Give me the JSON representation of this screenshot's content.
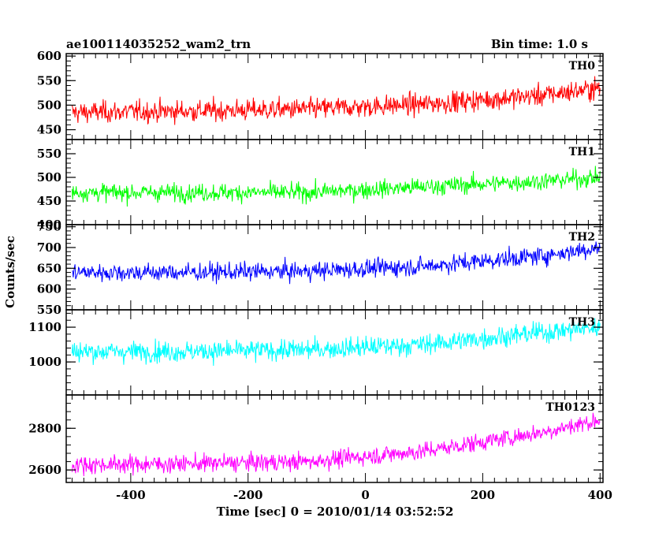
{
  "chart_data": {
    "type": "line",
    "title_left": "ae100114035252_wam2_trn",
    "title_right": "Bin time: 1.0 s",
    "xlabel": "Time [sec] 0 = 2010/01/14 03:52:52",
    "ylabel": "Counts/sec",
    "xlim": [
      -510,
      405
    ],
    "x_ticks": [
      -400,
      -200,
      0,
      200,
      400
    ],
    "x_range": [
      -500,
      400
    ],
    "bin_time": 1.0,
    "panels": [
      {
        "name": "TH0",
        "color": "#ff0000",
        "ylim": [
          430,
          605
        ],
        "y_ticks": [
          450,
          500,
          550,
          600
        ],
        "trend": [
          [
            -500,
            485
          ],
          [
            -300,
            488
          ],
          [
            -100,
            492
          ],
          [
            100,
            502
          ],
          [
            300,
            520
          ],
          [
            400,
            535
          ]
        ],
        "noise": 28
      },
      {
        "name": "TH1",
        "color": "#00ff00",
        "ylim": [
          400,
          580
        ],
        "y_ticks": [
          400,
          450,
          500,
          550
        ],
        "trend": [
          [
            -500,
            468
          ],
          [
            -300,
            468
          ],
          [
            -100,
            468
          ],
          [
            100,
            480
          ],
          [
            300,
            492
          ],
          [
            400,
            500
          ]
        ],
        "noise": 24
      },
      {
        "name": "TH2",
        "color": "#0000ff",
        "ylim": [
          550,
          755
        ],
        "y_ticks": [
          550,
          600,
          650,
          700,
          750
        ],
        "trend": [
          [
            -500,
            640
          ],
          [
            -300,
            640
          ],
          [
            -100,
            643
          ],
          [
            100,
            655
          ],
          [
            300,
            680
          ],
          [
            400,
            700
          ]
        ],
        "noise": 28
      },
      {
        "name": "TH3",
        "color": "#00ffff",
        "ylim": [
          905,
          1150
        ],
        "y_ticks": [
          1000,
          1100
        ],
        "trend": [
          [
            -500,
            1030
          ],
          [
            -300,
            1030
          ],
          [
            -100,
            1035
          ],
          [
            100,
            1050
          ],
          [
            300,
            1085
          ],
          [
            400,
            1100
          ]
        ],
        "noise": 38
      },
      {
        "name": "TH0123",
        "color": "#ff00ff",
        "ylim": [
          2540,
          2960
        ],
        "y_ticks": [
          2600,
          2800
        ],
        "trend": [
          [
            -500,
            2625
          ],
          [
            -300,
            2630
          ],
          [
            -100,
            2640
          ],
          [
            100,
            2690
          ],
          [
            300,
            2780
          ],
          [
            400,
            2840
          ]
        ],
        "noise": 55
      }
    ]
  }
}
